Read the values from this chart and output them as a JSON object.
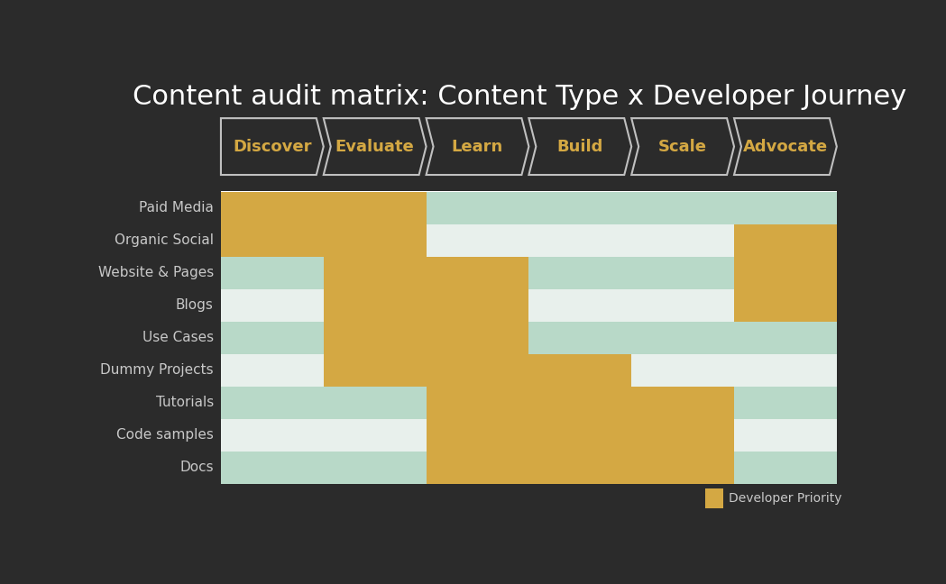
{
  "title": "Content audit matrix: Content Type x Developer Journey",
  "background_color": "#2b2b2b",
  "stages": [
    "Discover",
    "Evaluate",
    "Learn",
    "Build",
    "Scale",
    "Advocate"
  ],
  "content_types": [
    "Paid Media",
    "Organic Social",
    "Website & Pages",
    "Blogs",
    "Use Cases",
    "Dummy Projects",
    "Tutorials",
    "Code samples",
    "Docs"
  ],
  "yellow_color": "#D4A843",
  "arrow_fill_color": "#2b2b2b",
  "arrow_border_color": "#c0c0c0",
  "stage_label_color": "#D4A843",
  "row_colors": [
    "#B8D9C8",
    "#e8f0ec"
  ],
  "priority_cells": [
    [
      1,
      1,
      0,
      0,
      0,
      0
    ],
    [
      1,
      1,
      0,
      0,
      0,
      1
    ],
    [
      0,
      1,
      1,
      0,
      0,
      1
    ],
    [
      0,
      1,
      1,
      0,
      0,
      1
    ],
    [
      0,
      1,
      1,
      0,
      0,
      0
    ],
    [
      0,
      1,
      1,
      1,
      0,
      0
    ],
    [
      0,
      0,
      1,
      1,
      1,
      0
    ],
    [
      0,
      0,
      1,
      1,
      1,
      0
    ],
    [
      0,
      0,
      1,
      1,
      1,
      0
    ]
  ],
  "legend_label": "Developer Priority",
  "title_fontsize": 22,
  "label_fontsize": 11,
  "stage_fontsize": 13
}
